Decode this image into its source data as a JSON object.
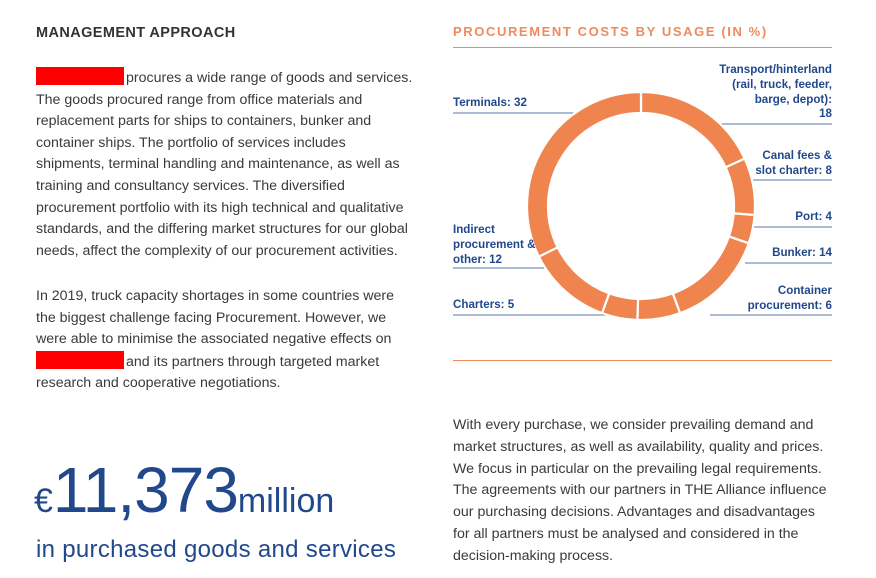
{
  "section": {
    "title": "MANAGEMENT APPROACH",
    "paragraph1": "procures a wide range of goods and services. The goods procured range from office materials and replacement parts for ships to containers, bunker and container ships. The portfolio of services includes shipments, terminal handling and maintenance, as well as training and consultancy services. The diversified procurement portfolio with its high technical and qualitative standards, and the differing market structures for our global needs, affect the complexity of our procurement activities.",
    "paragraph2_part1": "In 2019, truck capacity shortages in some countries were the biggest challenge facing Procurement. However, we were able to minimise the associated negative effects on",
    "paragraph2_part2": "and its partners through targeted market research and cooperative negotiations."
  },
  "highlight": {
    "currency": "€",
    "value": "11,373",
    "unit": "million",
    "caption": "in purchased goods and services"
  },
  "chart_data": {
    "type": "pie",
    "style": "donut",
    "title": "PROCUREMENT COSTS BY USAGE (IN %)",
    "color": "#f0844f",
    "slices": [
      {
        "label": "Transport/hinterland (rail, truck, feeder, barge, depot): 18",
        "value": 18
      },
      {
        "label": "Canal fees & slot charter: 8",
        "value": 8
      },
      {
        "label": "Port: 4",
        "value": 4
      },
      {
        "label": "Bunker: 14",
        "value": 14
      },
      {
        "label": "Container procurement: 6",
        "value": 6
      },
      {
        "label": "Charters: 5",
        "value": 5
      },
      {
        "label": "Indirect procurement & other: 12",
        "value": 12
      },
      {
        "label": "Terminals: 32",
        "value": 32
      }
    ]
  },
  "labels": {
    "terminals": "Terminals: 32",
    "transport_l1": "Transport/hinterland",
    "transport_l2": "(rail, truck, feeder,",
    "transport_l3": "barge, depot):",
    "transport_l4": "18",
    "canal_l1": "Canal fees &",
    "canal_l2": "slot charter: 8",
    "port": "Port: 4",
    "indirect_l1": "Indirect",
    "indirect_l2": "procurement &",
    "indirect_l3": "other: 12",
    "bunker": "Bunker: 14",
    "charters": "Charters: 5",
    "container_l1": "Container",
    "container_l2": "procurement: 6"
  },
  "right_text": "With every purchase, we consider prevailing demand and market structures, as well as availability, quality and prices. We focus in particular on the prevailing legal requirements. The agreements with our partners in THE Alliance influence our purchasing decisions. Advantages and disadvantages for all partners must be analysed and considered in the decision-making process."
}
